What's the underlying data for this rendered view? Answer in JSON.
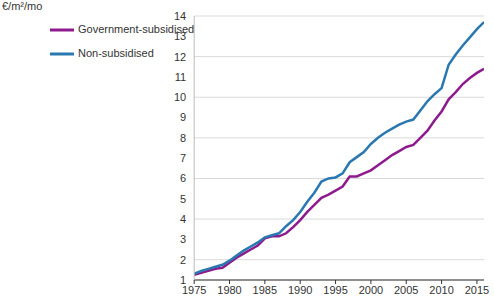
{
  "chart_data": {
    "type": "line",
    "y_label": "€/m²/mo",
    "x": [
      1975,
      1976,
      1977,
      1978,
      1979,
      1980,
      1981,
      1982,
      1983,
      1984,
      1985,
      1986,
      1987,
      1988,
      1989,
      1990,
      1991,
      1992,
      1993,
      1994,
      1995,
      1996,
      1997,
      1998,
      1999,
      2000,
      2001,
      2002,
      2003,
      2004,
      2005,
      2006,
      2007,
      2008,
      2009,
      2010,
      2011,
      2012,
      2013,
      2014,
      2015,
      2016
    ],
    "series": [
      {
        "name": "Government-subsidised",
        "color": "#8e1b8e",
        "values": [
          1.25,
          1.35,
          1.45,
          1.55,
          1.6,
          1.85,
          2.1,
          2.3,
          2.5,
          2.7,
          3.05,
          3.15,
          3.15,
          3.3,
          3.6,
          3.95,
          4.35,
          4.7,
          5.05,
          5.2,
          5.4,
          5.6,
          6.1,
          6.1,
          6.25,
          6.4,
          6.65,
          6.9,
          7.15,
          7.35,
          7.55,
          7.65,
          8.0,
          8.35,
          8.85,
          9.3,
          9.9,
          10.25,
          10.65,
          10.95,
          11.2,
          11.4
        ]
      },
      {
        "name": "Non-subsidised",
        "color": "#2a78b0",
        "values": [
          1.3,
          1.45,
          1.55,
          1.65,
          1.75,
          1.95,
          2.2,
          2.45,
          2.65,
          2.85,
          3.1,
          3.2,
          3.3,
          3.65,
          3.95,
          4.35,
          4.85,
          5.3,
          5.85,
          6.0,
          6.05,
          6.25,
          6.8,
          7.05,
          7.3,
          7.7,
          8.0,
          8.25,
          8.45,
          8.65,
          8.8,
          8.9,
          9.35,
          9.8,
          10.15,
          10.45,
          11.6,
          12.1,
          12.55,
          12.95,
          13.35,
          13.7
        ]
      }
    ],
    "xlim": [
      1975,
      2016
    ],
    "xticks": [
      1975,
      1980,
      1985,
      1990,
      1995,
      2000,
      2005,
      2010,
      2015
    ],
    "ylim": [
      1,
      14
    ],
    "yticks": [
      1,
      2,
      3,
      4,
      5,
      6,
      7,
      8,
      9,
      10,
      11,
      12,
      13,
      14
    ],
    "grid": true,
    "legend": "upper left"
  }
}
